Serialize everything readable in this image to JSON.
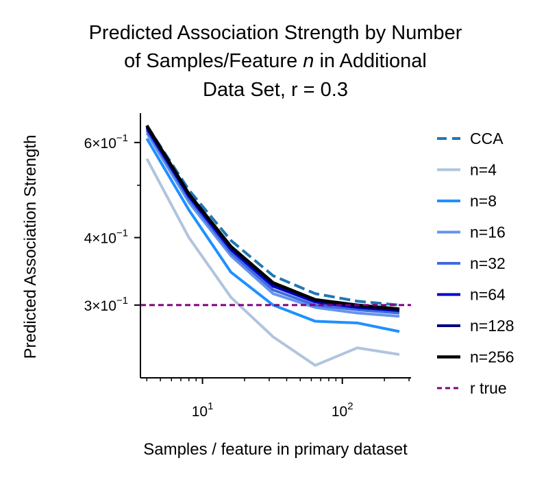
{
  "chart_data": {
    "type": "line",
    "title_lines": [
      "Predicted Association Strength by Number",
      "of Samples/Feature ",
      "n",
      " in Additional",
      "Data Set, r = 0.3"
    ],
    "xlabel": "Samples / feature in primary dataset",
    "ylabel": "Predicted Association Strength",
    "x_scale": "log",
    "y_scale": "log",
    "xlim": [
      3.6,
      310
    ],
    "ylim": [
      0.22,
      0.68
    ],
    "x_ticks": [
      {
        "value": 10,
        "base": "10",
        "exp": "1"
      },
      {
        "value": 100,
        "base": "10",
        "exp": "2"
      }
    ],
    "y_ticks": [
      {
        "value": 0.6,
        "mant": "6",
        "base": "10",
        "exp": "−1"
      },
      {
        "value": 0.4,
        "mant": "4",
        "base": "10",
        "exp": "−1"
      },
      {
        "value": 0.3,
        "mant": "3",
        "base": "10",
        "exp": "−1"
      }
    ],
    "x": [
      4,
      8,
      16,
      32,
      64,
      128,
      256
    ],
    "series": [
      {
        "name": "CCA",
        "color": "#1f77b4",
        "dash": "dashed",
        "width": 4,
        "values": [
          0.645,
          0.49,
          0.395,
          0.34,
          0.315,
          0.305,
          0.3
        ]
      },
      {
        "name": "n=4",
        "color": "#b0c4de",
        "dash": "solid",
        "width": 4,
        "values": [
          0.56,
          0.4,
          0.31,
          0.262,
          0.232,
          0.25,
          0.243
        ]
      },
      {
        "name": "n=8",
        "color": "#1e90ff",
        "dash": "solid",
        "width": 4,
        "values": [
          0.61,
          0.45,
          0.345,
          0.3,
          0.28,
          0.278,
          0.268
        ]
      },
      {
        "name": "n=16",
        "color": "#6495ed",
        "dash": "solid",
        "width": 4,
        "values": [
          0.625,
          0.465,
          0.37,
          0.315,
          0.297,
          0.29,
          0.286
        ]
      },
      {
        "name": "n=32",
        "color": "#4169e1",
        "dash": "solid",
        "width": 4,
        "values": [
          0.632,
          0.472,
          0.375,
          0.32,
          0.3,
          0.294,
          0.29
        ]
      },
      {
        "name": "n=64",
        "color": "#0000cd",
        "dash": "solid",
        "width": 4,
        "values": [
          0.638,
          0.477,
          0.38,
          0.325,
          0.304,
          0.297,
          0.293
        ]
      },
      {
        "name": "n=128",
        "color": "#000080",
        "dash": "solid",
        "width": 4,
        "values": [
          0.642,
          0.48,
          0.383,
          0.328,
          0.306,
          0.298,
          0.294
        ]
      },
      {
        "name": "n=256",
        "color": "#000000",
        "dash": "solid",
        "width": 4.5,
        "values": [
          0.645,
          0.482,
          0.385,
          0.33,
          0.307,
          0.3,
          0.295
        ]
      },
      {
        "name": "r true",
        "color": "#800080",
        "dash": "dashed-short",
        "width": 3,
        "values": [
          0.3,
          0.3,
          0.3,
          0.3,
          0.3,
          0.3,
          0.3
        ],
        "span": "full"
      }
    ],
    "legend": {
      "position": "right"
    },
    "grid": false
  }
}
